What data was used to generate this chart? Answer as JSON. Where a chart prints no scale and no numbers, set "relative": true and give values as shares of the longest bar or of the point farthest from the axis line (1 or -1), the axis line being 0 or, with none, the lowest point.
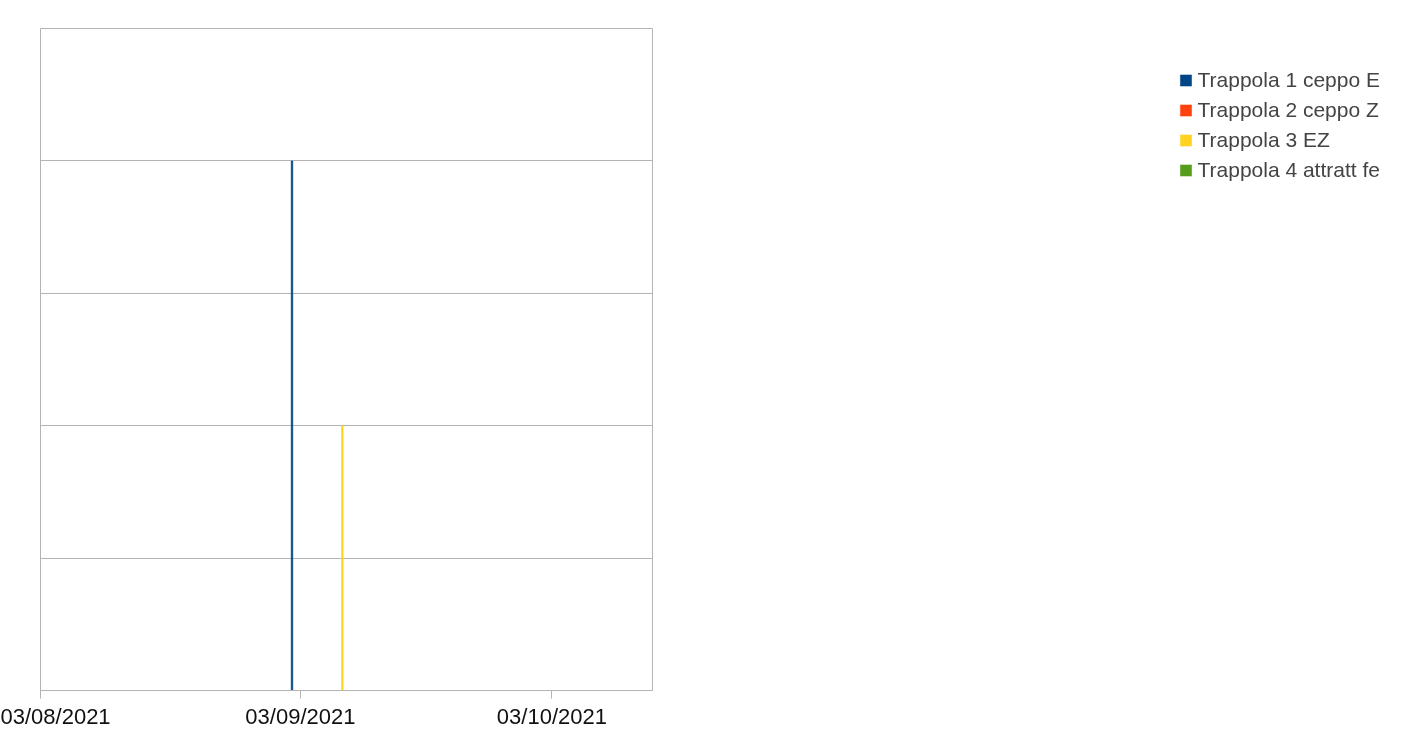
{
  "chart_data": {
    "type": "bar",
    "relative": true,
    "x": [
      "2021-09-02",
      "2021-09-08"
    ],
    "series": [
      {
        "name": "Trappola 1 ceppo E",
        "color": "#004586",
        "values": [
          1,
          0
        ]
      },
      {
        "name": "Trappola 2 ceppo Z",
        "color": "#ff420e",
        "values": [
          0,
          0
        ]
      },
      {
        "name": "Trappola 3 EZ",
        "color": "#ffd320",
        "values": [
          0,
          0.5
        ]
      },
      {
        "name": "Trappola 4 attratt fe",
        "color": "#579d1c",
        "values": [
          0,
          0
        ]
      }
    ],
    "xlim": [
      "2021-08-03",
      "2021-10-15"
    ],
    "xticks": [
      {
        "value": "2021-08-03",
        "label": "03/08/2021"
      },
      {
        "value": "2021-09-03",
        "label": "03/09/2021"
      },
      {
        "value": "2021-10-03",
        "label": "03/10/2021"
      }
    ],
    "grid": "y",
    "legend": "right"
  }
}
